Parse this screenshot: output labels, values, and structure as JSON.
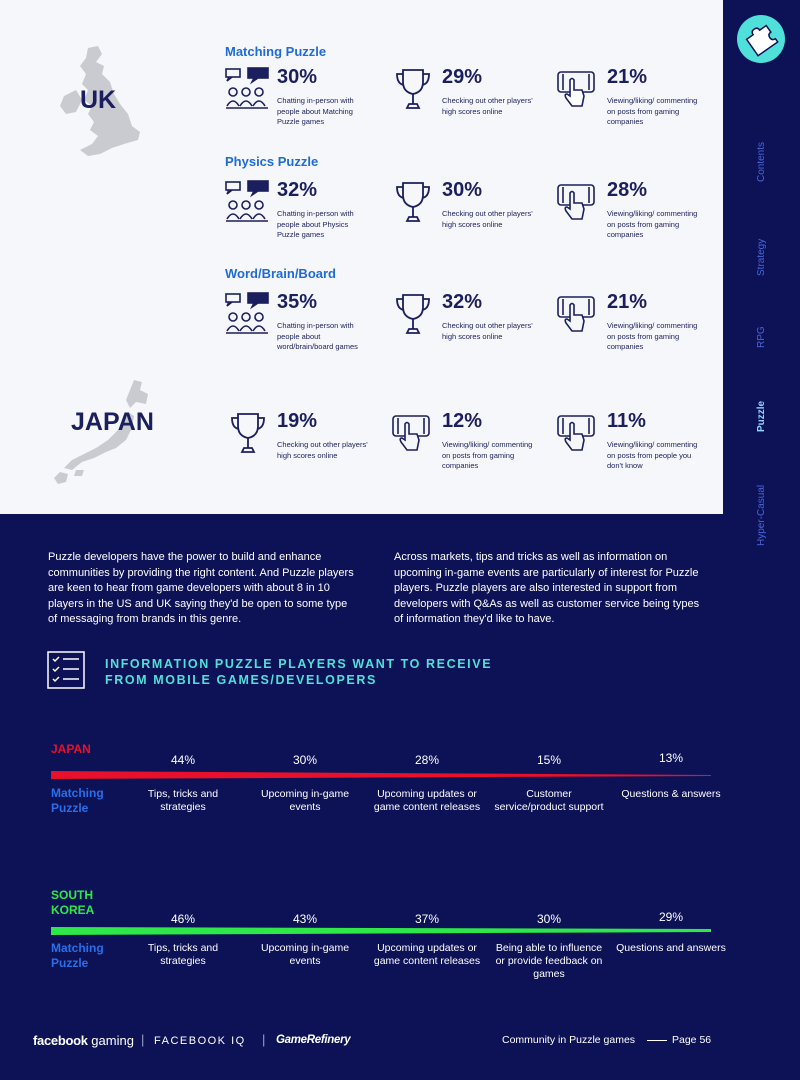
{
  "sidebar": {
    "nav": [
      "Contents",
      "Strategy",
      "RPG",
      "Puzzle",
      "Hyper-Casual"
    ],
    "active": "Puzzle"
  },
  "uk": {
    "label": "UK",
    "categories": [
      {
        "title": "Matching Puzzle",
        "stats": [
          {
            "icon": "chat-people-icon",
            "pct": "30%",
            "desc": "Chatting in-person with people about Matching Puzzle games"
          },
          {
            "icon": "trophy-icon",
            "pct": "29%",
            "desc": "Checking out other players' high scores online"
          },
          {
            "icon": "phone-tap-icon",
            "pct": "21%",
            "desc": "Viewing/liking/ commenting on posts from gaming companies"
          }
        ]
      },
      {
        "title": "Physics Puzzle",
        "stats": [
          {
            "icon": "chat-people-icon",
            "pct": "32%",
            "desc": "Chatting in-person with people about Physics Puzzle games"
          },
          {
            "icon": "trophy-icon",
            "pct": "30%",
            "desc": "Checking out other players' high scores online"
          },
          {
            "icon": "phone-tap-icon",
            "pct": "28%",
            "desc": "Viewing/liking/ commenting on posts from gaming companies"
          }
        ]
      },
      {
        "title": "Word/Brain/Board",
        "stats": [
          {
            "icon": "chat-people-icon",
            "pct": "35%",
            "desc": "Chatting in-person with people about word/brain/board games"
          },
          {
            "icon": "trophy-icon",
            "pct": "32%",
            "desc": "Checking out other players' high scores online"
          },
          {
            "icon": "phone-tap-icon",
            "pct": "21%",
            "desc": "Viewing/liking/ commenting on posts from gaming companies"
          }
        ]
      }
    ]
  },
  "japan": {
    "label": "JAPAN",
    "stats": [
      {
        "icon": "trophy-icon",
        "pct": "19%",
        "desc": "Checking out other players' high scores online"
      },
      {
        "icon": "phone-tap-icon",
        "pct": "12%",
        "desc": "Viewing/liking/ commenting on posts from gaming companies"
      },
      {
        "icon": "phone-tap-icon",
        "pct": "11%",
        "desc": "Viewing/liking/ commenting on posts from people you don't know"
      }
    ]
  },
  "paragraphs": {
    "left": "Puzzle developers have the power to build and enhance communities by providing the right content. And Puzzle players are keen to hear from game developers with about 8 in 10 players in the US and UK saying they'd be open to some type of messaging from brands in this genre.",
    "right": "Across markets, tips and tricks as well as information on upcoming in-game events are particularly of interest for Puzzle players. Puzzle players are also interested in support from developers with Q&As as well as customer service being types of information they'd like to have."
  },
  "info": {
    "title_line1": "INFORMATION PUZZLE PLAYERS WANT TO RECEIVE",
    "title_line2": "FROM MOBILE GAMES/DEVELOPERS"
  },
  "chart_data": [
    {
      "type": "bar",
      "country": "JAPAN",
      "category": "Matching Puzzle",
      "color": "#e8102a",
      "categories": [
        "Tips, tricks and strategies",
        "Upcoming in-game events",
        "Upcoming updates or game content releases",
        "Customer service/product support",
        "Questions & answers"
      ],
      "values": [
        44,
        30,
        28,
        15,
        13
      ],
      "value_labels": [
        "44%",
        "30%",
        "28%",
        "15%",
        "13%"
      ]
    },
    {
      "type": "bar",
      "country": "SOUTH KOREA",
      "category": "Matching Puzzle",
      "color": "#2ee84a",
      "categories": [
        "Tips, tricks and strategies",
        "Upcoming in-game events",
        "Upcoming updates or game content releases",
        "Being able to influence or provide feedback on games",
        "Questions and answers"
      ],
      "values": [
        46,
        43,
        37,
        30,
        29
      ],
      "value_labels": [
        "46%",
        "43%",
        "37%",
        "30%",
        "29%"
      ]
    }
  ],
  "footer": {
    "facebook": "facebook",
    "gaming": "gaming",
    "iq": "FACEBOOK IQ",
    "gamerefinery": "GameRefinery",
    "section": "Community in Puzzle games",
    "page": "Page 56"
  },
  "colors": {
    "navy": "#0d1257",
    "accent_cyan": "#4fe0da",
    "category_blue": "#1e6bd6",
    "japan_red": "#e8102a",
    "korea_green": "#2ee84a"
  }
}
